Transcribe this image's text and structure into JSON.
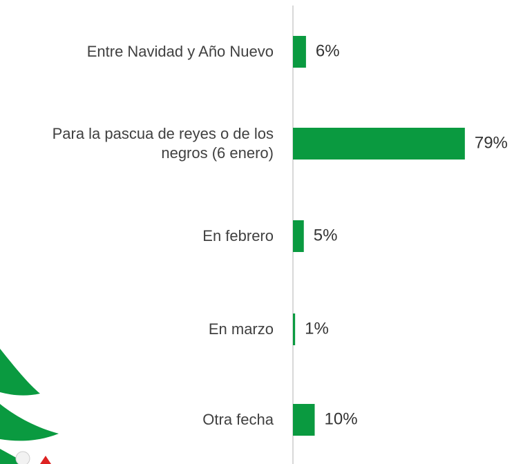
{
  "chart_data": {
    "type": "bar",
    "orientation": "horizontal",
    "categories": [
      "Entre Navidad y Año Nuevo",
      "Para la pascua de reyes o de los negros (6 enero)",
      "En febrero",
      "En marzo",
      "Otra fecha"
    ],
    "values": [
      6,
      79,
      5,
      1,
      10
    ],
    "value_labels": [
      "6%",
      "79%",
      "5%",
      "1%",
      "10%"
    ],
    "color": "#0a9a40"
  }
}
